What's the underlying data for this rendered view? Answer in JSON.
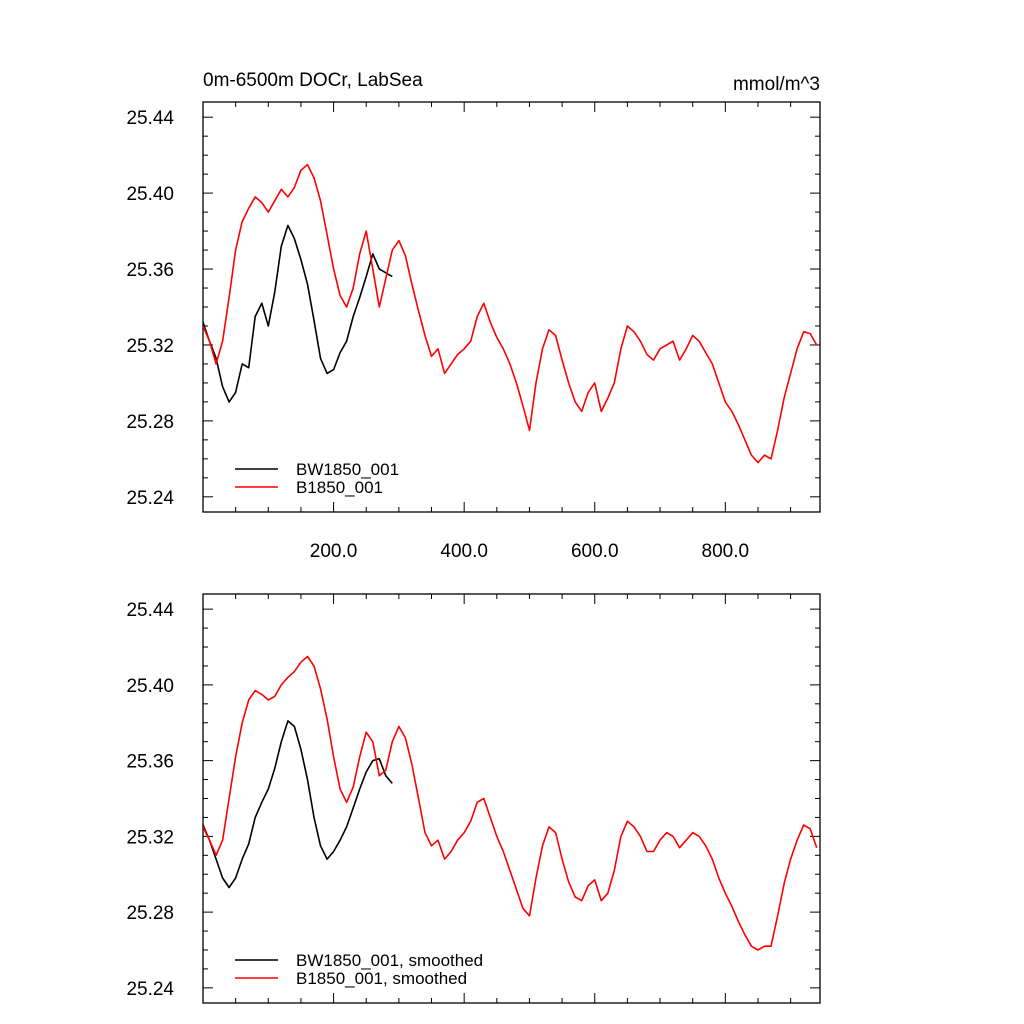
{
  "chart_data": [
    {
      "type": "line",
      "title": "0m-6500m DOCr, LabSea",
      "units": "mmol/m^3",
      "xlim": [
        0,
        945
      ],
      "ylim": [
        25.232,
        25.448
      ],
      "x_ticks": [
        200,
        400,
        600,
        800
      ],
      "x_tick_labels": [
        "200.0",
        "400.0",
        "600.0",
        "800.0"
      ],
      "y_ticks": [
        25.24,
        25.28,
        25.32,
        25.36,
        25.4,
        25.44
      ],
      "y_tick_labels": [
        "25.24",
        "25.28",
        "25.32",
        "25.36",
        "25.40",
        "25.44"
      ],
      "legend_position": "bottom-left",
      "series": [
        {
          "name": "BW1850_001",
          "color": "#000000",
          "x": [
            0,
            10,
            20,
            30,
            40,
            50,
            60,
            70,
            80,
            90,
            100,
            110,
            120,
            130,
            140,
            150,
            160,
            170,
            180,
            190,
            200,
            210,
            220,
            230,
            240,
            250,
            260,
            270,
            280,
            290
          ],
          "values": [
            25.332,
            25.322,
            25.313,
            25.298,
            25.29,
            25.295,
            25.31,
            25.308,
            25.335,
            25.342,
            25.33,
            25.348,
            25.372,
            25.383,
            25.376,
            25.365,
            25.352,
            25.333,
            25.313,
            25.305,
            25.307,
            25.316,
            25.322,
            25.335,
            25.345,
            25.356,
            25.368,
            25.36,
            25.358,
            25.356
          ]
        },
        {
          "name": "B1850_001",
          "color": "#ff0000",
          "x": [
            0,
            10,
            20,
            30,
            40,
            50,
            60,
            70,
            80,
            90,
            100,
            110,
            120,
            130,
            140,
            150,
            160,
            170,
            180,
            190,
            200,
            210,
            220,
            230,
            240,
            250,
            260,
            270,
            280,
            290,
            300,
            310,
            320,
            330,
            340,
            350,
            360,
            370,
            380,
            390,
            400,
            410,
            420,
            430,
            440,
            450,
            460,
            470,
            480,
            490,
            500,
            510,
            520,
            530,
            540,
            550,
            560,
            570,
            580,
            590,
            600,
            610,
            620,
            630,
            640,
            650,
            660,
            670,
            680,
            690,
            700,
            710,
            720,
            730,
            740,
            750,
            760,
            770,
            780,
            790,
            800,
            810,
            820,
            830,
            840,
            850,
            860,
            870,
            880,
            890,
            900,
            910,
            920,
            930,
            940
          ],
          "values": [
            25.33,
            25.322,
            25.31,
            25.322,
            25.345,
            25.37,
            25.385,
            25.392,
            25.398,
            25.395,
            25.39,
            25.396,
            25.402,
            25.398,
            25.403,
            25.412,
            25.415,
            25.408,
            25.396,
            25.378,
            25.36,
            25.346,
            25.34,
            25.35,
            25.368,
            25.38,
            25.36,
            25.34,
            25.355,
            25.37,
            25.375,
            25.367,
            25.352,
            25.338,
            25.325,
            25.314,
            25.318,
            25.305,
            25.31,
            25.315,
            25.318,
            25.322,
            25.335,
            25.342,
            25.332,
            25.324,
            25.318,
            25.31,
            25.3,
            25.288,
            25.275,
            25.3,
            25.318,
            25.328,
            25.325,
            25.312,
            25.3,
            25.29,
            25.285,
            25.295,
            25.3,
            25.285,
            25.292,
            25.3,
            25.318,
            25.33,
            25.327,
            25.322,
            25.315,
            25.312,
            25.318,
            25.32,
            25.322,
            25.312,
            25.318,
            25.325,
            25.322,
            25.316,
            25.31,
            25.3,
            25.29,
            25.285,
            25.278,
            25.27,
            25.262,
            25.258,
            25.262,
            25.26,
            25.275,
            25.292,
            25.305,
            25.318,
            25.327,
            25.326,
            25.32
          ]
        }
      ]
    },
    {
      "type": "line",
      "xlim": [
        0,
        945
      ],
      "ylim": [
        25.232,
        25.448
      ],
      "y_ticks": [
        25.24,
        25.28,
        25.32,
        25.36,
        25.4,
        25.44
      ],
      "y_tick_labels": [
        "25.24",
        "25.28",
        "25.32",
        "25.36",
        "25.40",
        "25.44"
      ],
      "x_ticks": [
        200,
        400,
        600,
        800
      ],
      "x_tick_labels": [],
      "legend_position": "bottom-left",
      "series": [
        {
          "name": "BW1850_001, smoothed",
          "color": "#000000",
          "x": [
            0,
            10,
            20,
            30,
            40,
            50,
            60,
            70,
            80,
            90,
            100,
            110,
            120,
            130,
            140,
            150,
            160,
            170,
            180,
            190,
            200,
            210,
            220,
            230,
            240,
            250,
            260,
            270,
            280,
            290
          ],
          "values": [
            25.326,
            25.318,
            25.308,
            25.298,
            25.293,
            25.298,
            25.308,
            25.316,
            25.33,
            25.338,
            25.345,
            25.356,
            25.37,
            25.381,
            25.378,
            25.366,
            25.35,
            25.33,
            25.315,
            25.308,
            25.312,
            25.318,
            25.325,
            25.335,
            25.345,
            25.354,
            25.36,
            25.361,
            25.352,
            25.348
          ]
        },
        {
          "name": "B1850_001, smoothed",
          "color": "#ff0000",
          "x": [
            0,
            10,
            20,
            30,
            40,
            50,
            60,
            70,
            80,
            90,
            100,
            110,
            120,
            130,
            140,
            150,
            160,
            170,
            180,
            190,
            200,
            210,
            220,
            230,
            240,
            250,
            260,
            270,
            280,
            290,
            300,
            310,
            320,
            330,
            340,
            350,
            360,
            370,
            380,
            390,
            400,
            410,
            420,
            430,
            440,
            450,
            460,
            470,
            480,
            490,
            500,
            510,
            520,
            530,
            540,
            550,
            560,
            570,
            580,
            590,
            600,
            610,
            620,
            630,
            640,
            650,
            660,
            670,
            680,
            690,
            700,
            710,
            720,
            730,
            740,
            750,
            760,
            770,
            780,
            790,
            800,
            810,
            820,
            830,
            840,
            850,
            860,
            870,
            880,
            890,
            900,
            910,
            920,
            930,
            940
          ],
          "values": [
            25.325,
            25.318,
            25.31,
            25.318,
            25.34,
            25.362,
            25.38,
            25.392,
            25.397,
            25.395,
            25.392,
            25.394,
            25.4,
            25.404,
            25.407,
            25.412,
            25.415,
            25.41,
            25.398,
            25.382,
            25.362,
            25.345,
            25.338,
            25.346,
            25.362,
            25.375,
            25.37,
            25.352,
            25.355,
            25.37,
            25.378,
            25.372,
            25.358,
            25.34,
            25.322,
            25.315,
            25.318,
            25.308,
            25.312,
            25.318,
            25.322,
            25.328,
            25.338,
            25.34,
            25.33,
            25.32,
            25.312,
            25.302,
            25.292,
            25.282,
            25.278,
            25.298,
            25.315,
            25.325,
            25.322,
            25.308,
            25.296,
            25.288,
            25.286,
            25.294,
            25.297,
            25.286,
            25.29,
            25.302,
            25.32,
            25.328,
            25.325,
            25.32,
            25.312,
            25.312,
            25.318,
            25.322,
            25.32,
            25.314,
            25.318,
            25.322,
            25.32,
            25.315,
            25.308,
            25.298,
            25.29,
            25.283,
            25.275,
            25.268,
            25.262,
            25.26,
            25.262,
            25.262,
            25.278,
            25.295,
            25.308,
            25.318,
            25.326,
            25.324,
            25.314
          ]
        }
      ]
    }
  ]
}
